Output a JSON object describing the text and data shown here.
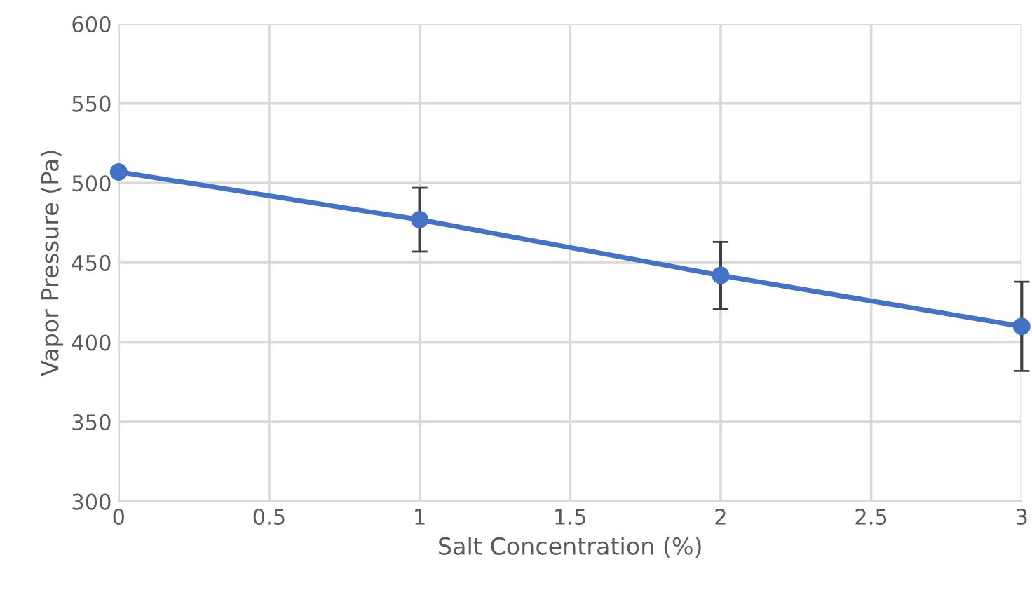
{
  "chart_data": {
    "type": "line",
    "xlabel": "Salt Concentration (%)",
    "ylabel": "Vapor Pressure (Pa)",
    "x": [
      0,
      1,
      2,
      3
    ],
    "series": [
      {
        "color": "#4472c4",
        "values": [
          507,
          477,
          442,
          410
        ],
        "errors": [
          null,
          20,
          21,
          28
        ]
      }
    ],
    "xlim": [
      0,
      3
    ],
    "xticks": [
      0,
      0.5,
      1,
      1.5,
      2,
      2.5,
      3
    ],
    "ylim": [
      300,
      600
    ],
    "yticks": [
      300,
      350,
      400,
      450,
      500,
      550,
      600
    ],
    "grid": true,
    "marker": "circle",
    "line_style": "solid"
  }
}
